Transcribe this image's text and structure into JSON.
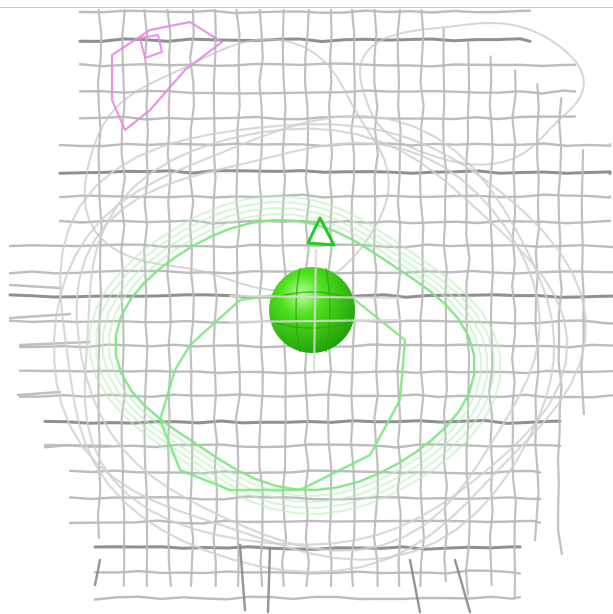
{
  "scene": {
    "style": "molecular density mesh rendering",
    "background_color": "#ffffff",
    "colors": {
      "density_mesh": "#b9b9b9",
      "density_mesh_dark": "#8a8a8a",
      "ligand_contour": "#7ee87e",
      "ligand_contour_bright": "#22cc22",
      "atom_sphere": "#3cd214",
      "atom_sphere_highlight": "#9ef77a",
      "pink_contour": "#e58ae5"
    },
    "objects": [
      {
        "kind": "mesh",
        "name": "electron-density-mesh"
      },
      {
        "kind": "contour",
        "name": "ligand-density-contour"
      },
      {
        "kind": "contour",
        "name": "negative-density-contour"
      },
      {
        "kind": "sphere",
        "name": "ion-sphere"
      }
    ]
  }
}
